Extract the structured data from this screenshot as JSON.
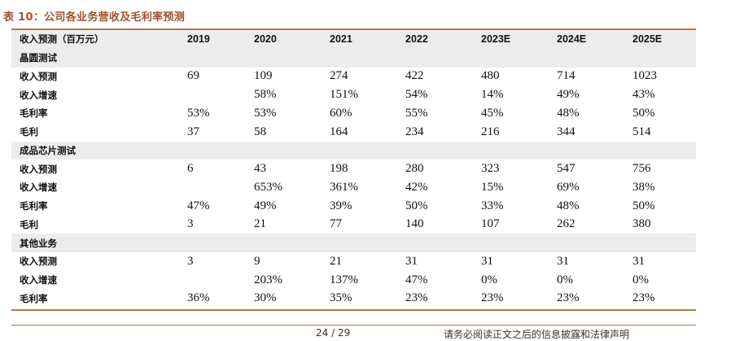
{
  "caption": "表 10：公司各业务营收及毛利率预测",
  "header": [
    "收入预测（百万元）",
    "2019",
    "2020",
    "2021",
    "2022",
    "2023E",
    "2024E",
    "2025E"
  ],
  "sections": [
    {
      "name": "晶圆测试",
      "rows": [
        {
          "label": "收入预测",
          "values": [
            "69",
            "109",
            "274",
            "422",
            "480",
            "714",
            "1023"
          ]
        },
        {
          "label": "收入增速",
          "values": [
            "",
            "58%",
            "151%",
            "54%",
            "14%",
            "49%",
            "43%"
          ]
        },
        {
          "label": "毛利率",
          "values": [
            "53%",
            "53%",
            "60%",
            "55%",
            "45%",
            "48%",
            "50%"
          ]
        },
        {
          "label": "毛利",
          "values": [
            "37",
            "58",
            "164",
            "234",
            "216",
            "344",
            "514"
          ]
        }
      ]
    },
    {
      "name": "成品芯片测试",
      "rows": [
        {
          "label": "收入预测",
          "values": [
            "6",
            "43",
            "198",
            "280",
            "323",
            "547",
            "756"
          ]
        },
        {
          "label": "收入增速",
          "values": [
            "",
            "653%",
            "361%",
            "42%",
            "15%",
            "69%",
            "38%"
          ]
        },
        {
          "label": "毛利率",
          "values": [
            "47%",
            "49%",
            "39%",
            "50%",
            "33%",
            "48%",
            "50%"
          ]
        },
        {
          "label": "毛利",
          "values": [
            "3",
            "21",
            "77",
            "140",
            "107",
            "262",
            "380"
          ]
        }
      ]
    },
    {
      "name": "其他业务",
      "rows": [
        {
          "label": "收入预测",
          "values": [
            "3",
            "9",
            "21",
            "31",
            "31",
            "31",
            "31"
          ]
        },
        {
          "label": "收入增速",
          "values": [
            "",
            "203%",
            "137%",
            "47%",
            "0%",
            "0%",
            "0%"
          ]
        },
        {
          "label": "毛利率",
          "values": [
            "36%",
            "30%",
            "35%",
            "23%",
            "23%",
            "23%",
            "23%"
          ]
        }
      ]
    }
  ],
  "footer": {
    "page": "24 / 29",
    "disclaimer": "请务必阅读正文之后的信息披露和法律声明"
  }
}
